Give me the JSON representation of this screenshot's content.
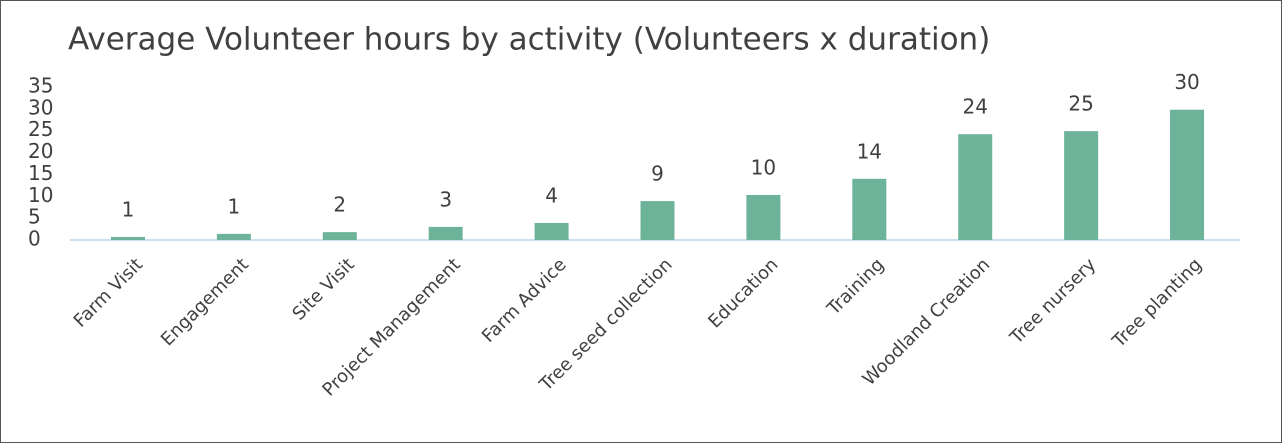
{
  "chart_data": {
    "type": "bar",
    "title": "Average Volunteer hours by activity (Volunteers x duration)",
    "categories": [
      "Farm Visit",
      "Engagement",
      "Site Visit",
      "Project Management",
      "Farm Advice",
      "Tree seed collection",
      "Education",
      "Training",
      "Woodland Creation",
      "Tree nursery",
      "Tree planting"
    ],
    "values": [
      0.7,
      1.4,
      1.8,
      3.0,
      3.9,
      8.9,
      10.3,
      14.0,
      24.2,
      24.9,
      29.8
    ],
    "value_labels": [
      "1",
      "1",
      "2",
      "3",
      "4",
      "9",
      "10",
      "14",
      "24",
      "25",
      "30"
    ],
    "color": "#6db39a",
    "ylim": [
      0,
      35
    ],
    "yticks": [
      0,
      5,
      10,
      15,
      20,
      25,
      30,
      35
    ],
    "grid": false
  }
}
